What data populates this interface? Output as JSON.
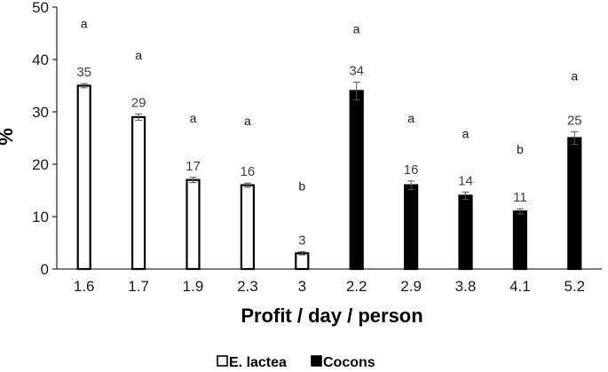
{
  "chart_data": {
    "type": "bar",
    "title": "",
    "xlabel": "Profit / day / person",
    "ylabel": "%",
    "ylim": [
      0,
      50
    ],
    "yticks": [
      0,
      10,
      20,
      30,
      40,
      50
    ],
    "grid": false,
    "legend_position": "bottom",
    "categories": [
      "1.6",
      "1.7",
      "1.9",
      "2.3",
      "3",
      "2.2",
      "2.9",
      "3.8",
      "4.1",
      "5.2"
    ],
    "value_labels": [
      "35",
      "29",
      "17",
      "16",
      "3",
      "34",
      "16",
      "14",
      "11",
      "25"
    ],
    "significance_letters": [
      "a",
      "a",
      "a",
      "a",
      "b",
      "a",
      "a",
      "a",
      "b",
      "a"
    ],
    "series": [
      {
        "name": "E. lactea",
        "color": "#ffffff",
        "stroke": "#000000",
        "values": [
          35,
          29,
          17,
          16,
          3,
          null,
          null,
          null,
          null,
          null
        ],
        "errors": [
          0.4,
          0.6,
          0.5,
          0.4,
          0.3,
          null,
          null,
          null,
          null,
          null
        ],
        "letter_y": [
          46,
          40,
          28,
          27.5,
          15,
          null,
          null,
          null,
          null,
          null
        ]
      },
      {
        "name": "Cocons",
        "color": "#000000",
        "stroke": "#000000",
        "values": [
          null,
          null,
          null,
          null,
          null,
          34,
          16,
          14,
          11,
          25
        ],
        "errors": [
          null,
          null,
          null,
          null,
          null,
          1.7,
          0.8,
          0.7,
          0.5,
          1.2
        ],
        "letter_y": [
          null,
          null,
          null,
          null,
          null,
          45,
          28,
          25,
          22,
          36
        ]
      }
    ]
  }
}
